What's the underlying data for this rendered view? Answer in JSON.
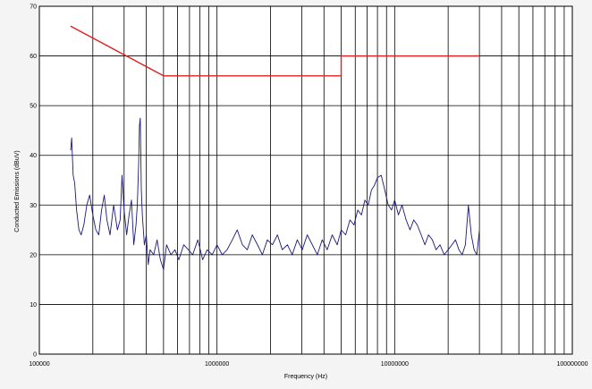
{
  "chart_data": {
    "type": "line",
    "title": "",
    "xlabel": "Frequency (Hz)",
    "ylabel": "Conducted Emissions (dBuV)",
    "x_scale": "log",
    "xlim": [
      100000,
      100000000
    ],
    "ylim": [
      0,
      70
    ],
    "grid": true,
    "legend": "none",
    "x_tick_labels": [
      "100000",
      "1000000",
      "10000000",
      "100000000"
    ],
    "y_tick_labels": [
      "0",
      "10",
      "20",
      "30",
      "40",
      "50",
      "60",
      "70"
    ],
    "colors": {
      "limit": "#e02020",
      "emissions": "#1a1a7a",
      "grid": "#000000",
      "plot_bg": "#ffffff",
      "page_bg": "#f4f4f4"
    },
    "series": [
      {
        "role": "limit",
        "x": [
          150000,
          500000,
          5000000,
          5000000,
          30000000
        ],
        "y": [
          66,
          56,
          56,
          60,
          60
        ]
      },
      {
        "role": "emissions",
        "x": [
          150000,
          152000,
          155000,
          158000,
          162000,
          167000,
          172000,
          178000,
          185000,
          192000,
          200000,
          208000,
          216000,
          224000,
          232000,
          240000,
          250000,
          262000,
          275000,
          285000,
          292000,
          300000,
          310000,
          320000,
          330000,
          340000,
          350000,
          356000,
          362000,
          366000,
          370000,
          375000,
          380000,
          390000,
          400000,
          410000,
          420000,
          440000,
          460000,
          480000,
          500000,
          520000,
          550000,
          580000,
          610000,
          650000,
          690000,
          730000,
          780000,
          830000,
          880000,
          940000,
          1000000,
          1070000,
          1140000,
          1220000,
          1300000,
          1390000,
          1480000,
          1580000,
          1690000,
          1800000,
          1920000,
          2050000,
          2190000,
          2330000,
          2490000,
          2650000,
          2830000,
          3020000,
          3220000,
          3440000,
          3670000,
          3910000,
          4170000,
          4450000,
          4750000,
          5000000,
          5300000,
          5600000,
          5900000,
          6200000,
          6500000,
          6800000,
          7100000,
          7400000,
          7700000,
          8000000,
          8400000,
          8800000,
          9200000,
          9600000,
          10000000,
          10500000,
          11000000,
          11600000,
          12200000,
          12800000,
          13400000,
          14100000,
          14800000,
          15500000,
          16300000,
          17100000,
          18000000,
          19000000,
          20000000,
          21000000,
          22000000,
          23000000,
          24000000,
          25000000,
          26000000,
          27000000,
          28000000,
          29000000,
          30000000
        ],
        "y": [
          41,
          43.5,
          36,
          34.5,
          29,
          25,
          24,
          26,
          30,
          32,
          28,
          25,
          24,
          29,
          32,
          27,
          24,
          30,
          25,
          27,
          36,
          29,
          24,
          28,
          31,
          22,
          26,
          30,
          38,
          46,
          47.5,
          33,
          28,
          22,
          24,
          18,
          21,
          20,
          23,
          19,
          17,
          22,
          20,
          21,
          19,
          22,
          21,
          20,
          23,
          19,
          21,
          20,
          22,
          20,
          21,
          23,
          25,
          22,
          21,
          24,
          22,
          20,
          23,
          22,
          24,
          21,
          22,
          20,
          23,
          21,
          24,
          22,
          20,
          23,
          21,
          24,
          22,
          25,
          24,
          27,
          26,
          29,
          28,
          31,
          30,
          33,
          34,
          35.5,
          36,
          33,
          30,
          29,
          31,
          28,
          30,
          27,
          25,
          27,
          26,
          24,
          22,
          24,
          23,
          21,
          22,
          20,
          21,
          22,
          23,
          21,
          20,
          22,
          30,
          24,
          21,
          20,
          25
        ]
      }
    ]
  }
}
